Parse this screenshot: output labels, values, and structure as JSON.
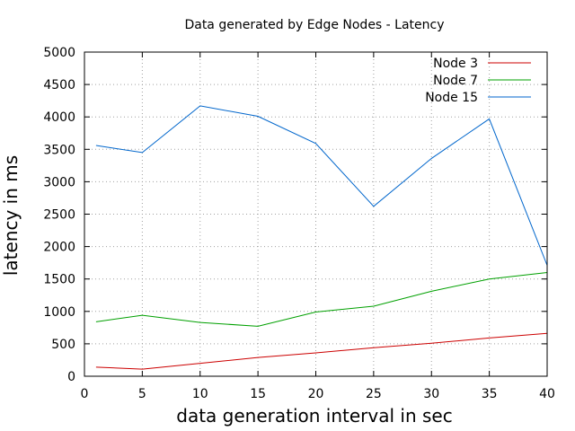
{
  "chart_data": {
    "type": "line",
    "title": "Data generated by Edge Nodes - Latency",
    "xlabel": "data generation interval in sec",
    "ylabel": "latency in ms",
    "xlim": [
      0,
      40
    ],
    "ylim": [
      0,
      5000
    ],
    "xticks": [
      0,
      5,
      10,
      15,
      20,
      25,
      30,
      35,
      40
    ],
    "yticks": [
      0,
      500,
      1000,
      1500,
      2000,
      2500,
      3000,
      3500,
      4000,
      4500,
      5000
    ],
    "grid": true,
    "legend_position": "top-right",
    "x": [
      1,
      5,
      10,
      15,
      20,
      25,
      30,
      35,
      40
    ],
    "series": [
      {
        "name": "Node 3",
        "color": "#cc0000",
        "values": [
          140,
          110,
          200,
          290,
          360,
          440,
          510,
          590,
          660
        ]
      },
      {
        "name": "Node 7",
        "color": "#00a000",
        "values": [
          840,
          940,
          830,
          770,
          990,
          1080,
          1310,
          1500,
          1600
        ]
      },
      {
        "name": "Node 15",
        "color": "#0066cc",
        "values": [
          3560,
          3450,
          4170,
          4010,
          3590,
          2620,
          3360,
          3970,
          1710
        ]
      }
    ]
  }
}
